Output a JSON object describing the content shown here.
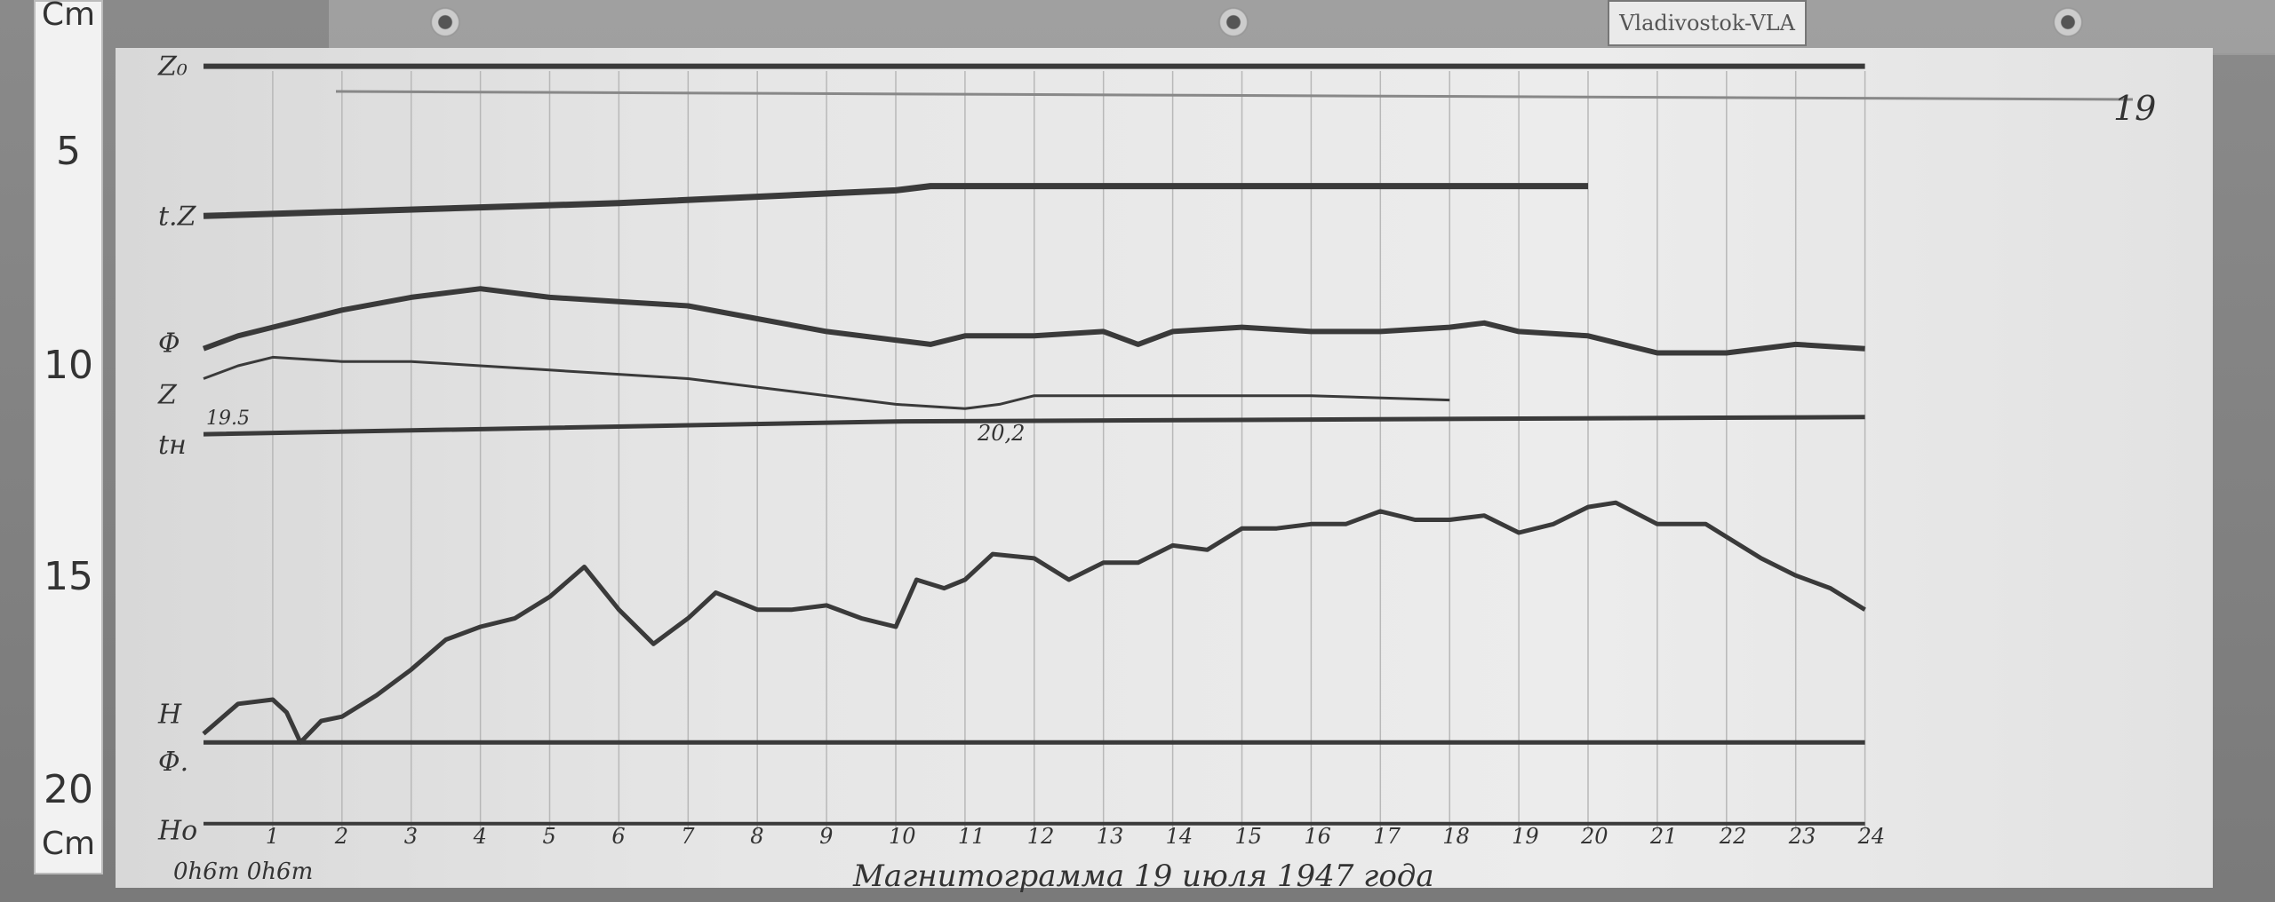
{
  "station_label": "Vladivostok-VLA",
  "sheet_number": "19",
  "caption": "Магнитограмма 19 июля 1947 года",
  "ruler": {
    "unit_top": "Cm",
    "unit_bottom": "Cm",
    "marks": [
      "5",
      "10",
      "15",
      "20"
    ]
  },
  "colors": {
    "trace": "#3a3a3a",
    "paper": "#e6e6e6",
    "board": "#7a7a7a"
  },
  "chart_data": {
    "type": "line",
    "xlabel": "",
    "ylabel": "",
    "x_unit": "hour",
    "y_unit": "cm (from left ruler)",
    "xlim": [
      0,
      24
    ],
    "ylim": [
      0,
      21
    ],
    "x_tick_labels": [
      "1",
      "2",
      "3",
      "4",
      "5",
      "6",
      "7",
      "8",
      "9",
      "10",
      "11",
      "12",
      "13",
      "14",
      "15",
      "16",
      "17",
      "18",
      "19",
      "20",
      "21",
      "22",
      "23",
      "24"
    ],
    "time_mark_label": "0h6m 0h6m",
    "annotations": {
      "tu_start": "19.5",
      "tu_mid": "20,2"
    },
    "series": [
      {
        "name": "Z₀",
        "x": [
          0,
          24
        ],
        "y": [
          3.0,
          3.0
        ]
      },
      {
        "name": "t.Z",
        "x": [
          0,
          6,
          10,
          10.5,
          20
        ],
        "y": [
          6.5,
          6.2,
          5.9,
          5.8,
          5.8
        ]
      },
      {
        "name": "Φ",
        "x": [
          0,
          0.5,
          1,
          2,
          3,
          4,
          5,
          6,
          7,
          8,
          9,
          10,
          10.5,
          11,
          12,
          13,
          13.5,
          14,
          15,
          16,
          17,
          18,
          18.5,
          19,
          20,
          20.5,
          21,
          22,
          23,
          24
        ],
        "y": [
          9.6,
          9.3,
          9.1,
          8.7,
          8.4,
          8.2,
          8.4,
          8.5,
          8.6,
          8.9,
          9.2,
          9.4,
          9.5,
          9.3,
          9.3,
          9.2,
          9.5,
          9.2,
          9.1,
          9.2,
          9.2,
          9.1,
          9.0,
          9.2,
          9.3,
          9.5,
          9.7,
          9.7,
          9.5,
          9.6
        ]
      },
      {
        "name": "Z",
        "x": [
          0,
          0.5,
          1,
          2,
          3,
          4,
          5,
          6,
          7,
          8,
          9,
          10,
          11,
          11.5,
          12,
          14,
          16,
          18
        ],
        "y": [
          10.3,
          10.0,
          9.8,
          9.9,
          9.9,
          10.0,
          10.1,
          10.2,
          10.3,
          10.5,
          10.7,
          10.9,
          11.0,
          10.9,
          10.7,
          10.7,
          10.7,
          10.8
        ]
      },
      {
        "name": "tн",
        "x": [
          0,
          10,
          24
        ],
        "y": [
          11.6,
          11.3,
          11.2
        ]
      },
      {
        "name": "H",
        "x": [
          0,
          0.5,
          1,
          1.2,
          1.4,
          1.7,
          2,
          2.5,
          3,
          3.5,
          4,
          4.5,
          5,
          5.5,
          6,
          6.5,
          7,
          7.4,
          8,
          8.5,
          9,
          9.5,
          10,
          10.3,
          10.7,
          11,
          11.4,
          12,
          12.5,
          13,
          13.5,
          14,
          14.5,
          15,
          15.5,
          16,
          16.5,
          17,
          17.5,
          18,
          18.5,
          19,
          19.5,
          20,
          20.4,
          21,
          21.7,
          22.5,
          23,
          23.5,
          24
        ],
        "y": [
          18.6,
          17.9,
          17.8,
          18.1,
          18.8,
          18.3,
          18.2,
          17.7,
          17.1,
          16.4,
          16.1,
          15.9,
          15.4,
          14.7,
          15.7,
          16.5,
          15.9,
          15.3,
          15.7,
          15.7,
          15.6,
          15.9,
          16.1,
          15.0,
          15.2,
          15.0,
          14.4,
          14.5,
          15.0,
          14.6,
          14.6,
          14.2,
          14.3,
          13.8,
          13.8,
          13.7,
          13.7,
          13.4,
          13.6,
          13.6,
          13.5,
          13.9,
          13.7,
          13.3,
          13.2,
          13.7,
          13.7,
          14.5,
          14.9,
          15.2,
          15.7
        ]
      },
      {
        "name": "Φ.",
        "x": [
          0,
          24
        ],
        "y": [
          18.8,
          18.8
        ]
      },
      {
        "name": "Hо",
        "x": [
          0,
          24
        ],
        "y": [
          20.7,
          20.7
        ]
      }
    ]
  }
}
